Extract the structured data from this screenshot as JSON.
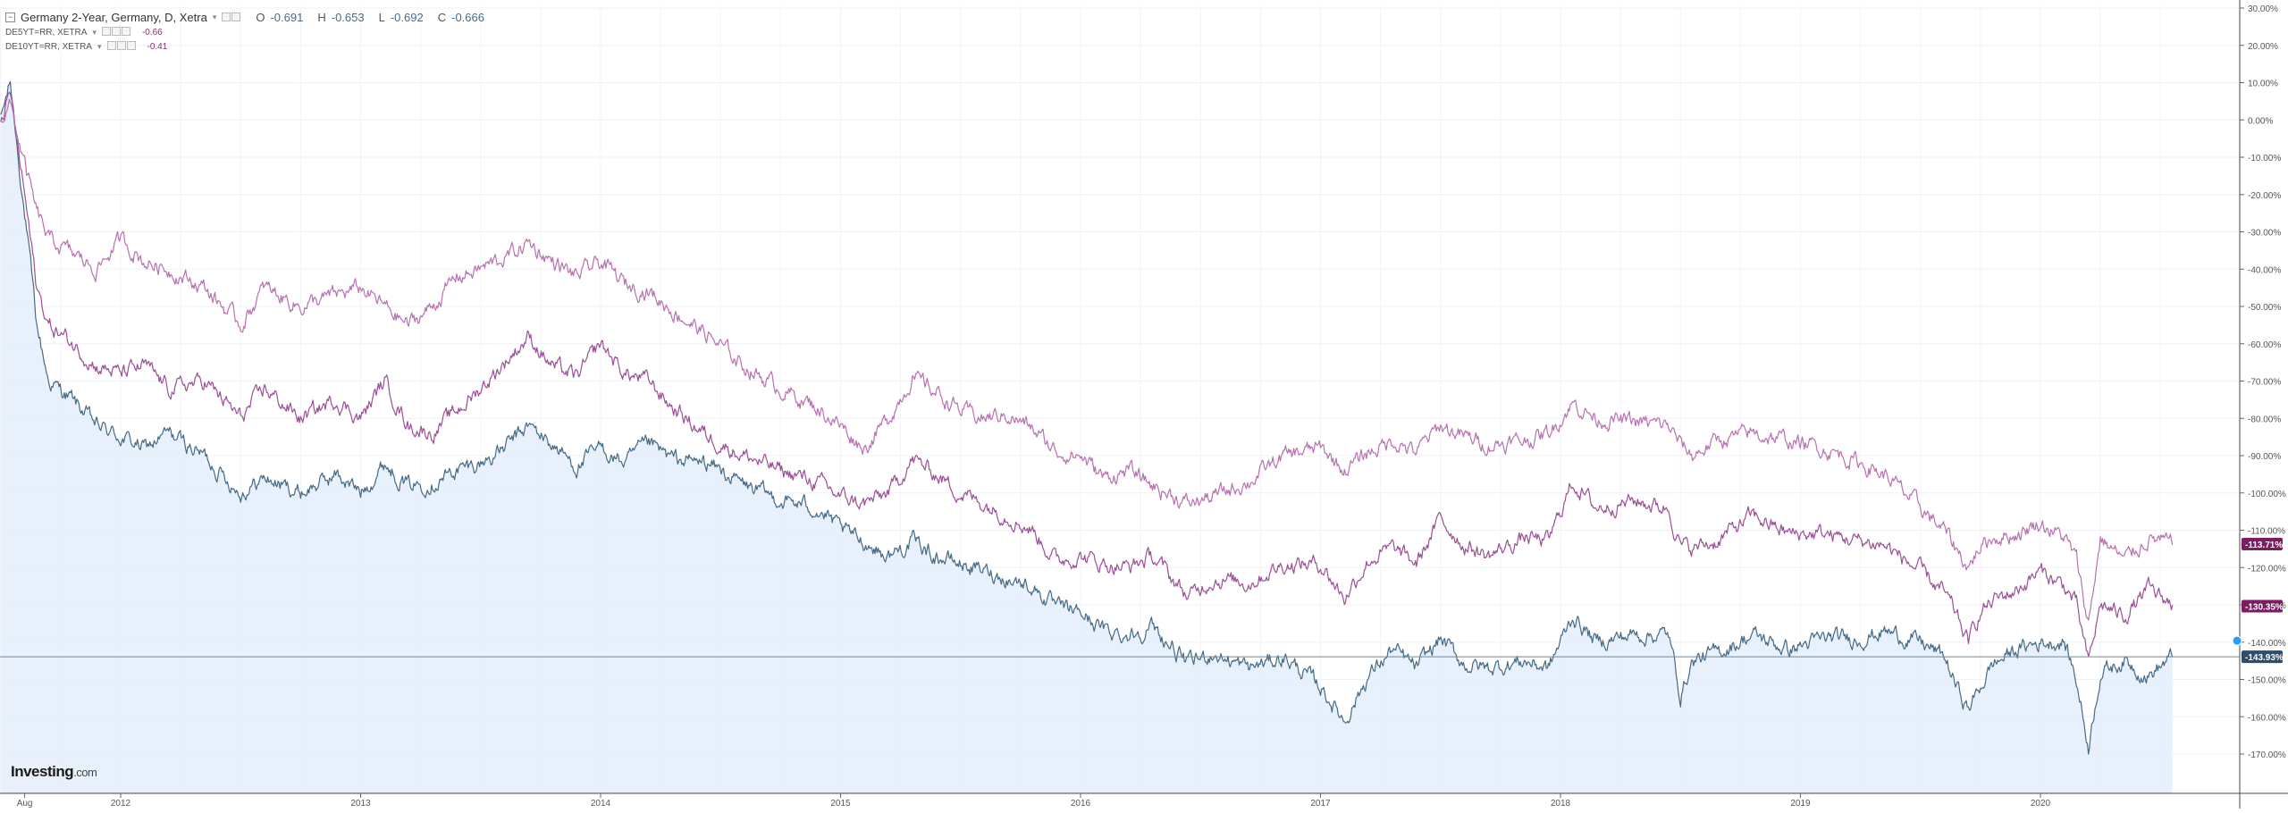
{
  "legend": {
    "main": {
      "title": "Germany 2-Year, Germany, D, Xetra",
      "o_label": "O",
      "o": "-0.691",
      "h_label": "H",
      "h": "-0.653",
      "l_label": "L",
      "l": "-0.692",
      "c_label": "C",
      "c": "-0.666"
    },
    "compare1": {
      "symbol": "DE5YT=RR, XETRA",
      "value": "-0.66"
    },
    "compare2": {
      "symbol": "DE10YT=RR, XETRA",
      "value": "-0.41"
    }
  },
  "logo": {
    "brand": "Investing",
    "suffix": ".com"
  },
  "colors": {
    "de2y": "#456a84",
    "de2y_fill": "#e4effa",
    "de5y": "#9b4f96",
    "de10y": "#b871b0",
    "badge_purple": "#7c1c62",
    "badge_blue": "#2d4d6a",
    "price_line": "#6e8799"
  },
  "chart_data": {
    "type": "line",
    "y_axis": {
      "min": -175,
      "max": 30,
      "unit": "%",
      "scale": "linear",
      "ticks": [
        30,
        20,
        10,
        0,
        -10,
        -20,
        -30,
        -40,
        -50,
        -60,
        -70,
        -80,
        -90,
        -100,
        -110,
        -120,
        -130,
        -140,
        -150,
        -160,
        -170
      ],
      "tick_labels": [
        "30.00%",
        "20.00%",
        "10.00%",
        "0.00%",
        "-10.00%",
        "-20.00%",
        "-30.00%",
        "-40.00%",
        "-50.00%",
        "-60.00%",
        "-70.00%",
        "-80.00%",
        "-90.00%",
        "-100.00%",
        "-110.00%",
        "-120.00%",
        "-130.00%",
        "-140.00%",
        "-150.00%",
        "-160.00%",
        "-170.00%"
      ]
    },
    "x_axis": {
      "min": 2011.5,
      "max": 2020.6,
      "tick_labels": [
        {
          "x": 2011.6,
          "label": "Aug"
        },
        {
          "x": 2012.0,
          "label": "2012"
        },
        {
          "x": 2013.0,
          "label": "2013"
        },
        {
          "x": 2014.0,
          "label": "2014"
        },
        {
          "x": 2015.0,
          "label": "2015"
        },
        {
          "x": 2016.0,
          "label": "2016"
        },
        {
          "x": 2017.0,
          "label": "2017"
        },
        {
          "x": 2018.0,
          "label": "2018"
        },
        {
          "x": 2019.0,
          "label": "2019"
        },
        {
          "x": 2020.0,
          "label": "2020"
        }
      ]
    },
    "grid": true,
    "series": [
      {
        "name": "Germany 2-Year",
        "style": "area",
        "last_label": "-143.93%",
        "last_value": -143.93,
        "points": [
          [
            2011.5,
            0
          ],
          [
            2011.54,
            10
          ],
          [
            2011.6,
            -25
          ],
          [
            2011.65,
            -55
          ],
          [
            2011.7,
            -70
          ],
          [
            2011.8,
            -75
          ],
          [
            2011.9,
            -82
          ],
          [
            2012.0,
            -85
          ],
          [
            2012.1,
            -88
          ],
          [
            2012.2,
            -84
          ],
          [
            2012.35,
            -90
          ],
          [
            2012.5,
            -100
          ],
          [
            2012.6,
            -96
          ],
          [
            2012.75,
            -100
          ],
          [
            2012.9,
            -95
          ],
          [
            2013.0,
            -100
          ],
          [
            2013.1,
            -92
          ],
          [
            2013.2,
            -98
          ],
          [
            2013.3,
            -97
          ],
          [
            2013.4,
            -94
          ],
          [
            2013.5,
            -92
          ],
          [
            2013.6,
            -88
          ],
          [
            2013.7,
            -82
          ],
          [
            2013.8,
            -87
          ],
          [
            2013.9,
            -93
          ],
          [
            2014.0,
            -88
          ],
          [
            2014.1,
            -92
          ],
          [
            2014.2,
            -87
          ],
          [
            2014.3,
            -91
          ],
          [
            2014.45,
            -92
          ],
          [
            2014.6,
            -98
          ],
          [
            2014.75,
            -102
          ],
          [
            2014.9,
            -104
          ],
          [
            2015.0,
            -110
          ],
          [
            2015.1,
            -113
          ],
          [
            2015.2,
            -117
          ],
          [
            2015.3,
            -113
          ],
          [
            2015.4,
            -117
          ],
          [
            2015.5,
            -119
          ],
          [
            2015.6,
            -121
          ],
          [
            2015.7,
            -123
          ],
          [
            2015.8,
            -125
          ],
          [
            2015.9,
            -131
          ],
          [
            2016.0,
            -132
          ],
          [
            2016.1,
            -137
          ],
          [
            2016.2,
            -138
          ],
          [
            2016.3,
            -136
          ],
          [
            2016.45,
            -146
          ],
          [
            2016.55,
            -143
          ],
          [
            2016.7,
            -147
          ],
          [
            2016.85,
            -144
          ],
          [
            2017.0,
            -152
          ],
          [
            2017.1,
            -161
          ],
          [
            2017.2,
            -149
          ],
          [
            2017.3,
            -142
          ],
          [
            2017.4,
            -147
          ],
          [
            2017.5,
            -139
          ],
          [
            2017.6,
            -146
          ],
          [
            2017.7,
            -147
          ],
          [
            2017.85,
            -145
          ],
          [
            2017.95,
            -147
          ],
          [
            2018.05,
            -133
          ],
          [
            2018.15,
            -140
          ],
          [
            2018.3,
            -138
          ],
          [
            2018.45,
            -138
          ],
          [
            2018.5,
            -154
          ],
          [
            2018.55,
            -145
          ],
          [
            2018.65,
            -143
          ],
          [
            2018.8,
            -138
          ],
          [
            2018.95,
            -142
          ],
          [
            2019.1,
            -139
          ],
          [
            2019.25,
            -139
          ],
          [
            2019.35,
            -137
          ],
          [
            2019.5,
            -140
          ],
          [
            2019.6,
            -144
          ],
          [
            2019.65,
            -152
          ],
          [
            2019.7,
            -158
          ],
          [
            2019.75,
            -152
          ],
          [
            2019.8,
            -146
          ],
          [
            2019.9,
            -142
          ],
          [
            2020.0,
            -140
          ],
          [
            2020.1,
            -140
          ],
          [
            2020.15,
            -150
          ],
          [
            2020.2,
            -168
          ],
          [
            2020.25,
            -148
          ],
          [
            2020.35,
            -145
          ],
          [
            2020.45,
            -149
          ],
          [
            2020.55,
            -144
          ]
        ]
      },
      {
        "name": "DE5YT=RR, XETRA",
        "style": "line",
        "last_label": "-130.35%",
        "last_value": -130.35,
        "points": [
          [
            2011.5,
            0
          ],
          [
            2011.54,
            7
          ],
          [
            2011.6,
            -20
          ],
          [
            2011.65,
            -45
          ],
          [
            2011.7,
            -55
          ],
          [
            2011.8,
            -60
          ],
          [
            2011.9,
            -66
          ],
          [
            2012.0,
            -68
          ],
          [
            2012.1,
            -66
          ],
          [
            2012.2,
            -72
          ],
          [
            2012.35,
            -70
          ],
          [
            2012.5,
            -80
          ],
          [
            2012.6,
            -72
          ],
          [
            2012.75,
            -80
          ],
          [
            2012.9,
            -75
          ],
          [
            2013.0,
            -80
          ],
          [
            2013.1,
            -70
          ],
          [
            2013.2,
            -82
          ],
          [
            2013.3,
            -84
          ],
          [
            2013.4,
            -78
          ],
          [
            2013.5,
            -72
          ],
          [
            2013.6,
            -65
          ],
          [
            2013.7,
            -58
          ],
          [
            2013.8,
            -66
          ],
          [
            2013.9,
            -69
          ],
          [
            2014.0,
            -60
          ],
          [
            2014.1,
            -68
          ],
          [
            2014.2,
            -70
          ],
          [
            2014.3,
            -77
          ],
          [
            2014.45,
            -85
          ],
          [
            2014.6,
            -90
          ],
          [
            2014.75,
            -94
          ],
          [
            2014.9,
            -97
          ],
          [
            2015.0,
            -101
          ],
          [
            2015.1,
            -103
          ],
          [
            2015.2,
            -100
          ],
          [
            2015.3,
            -91
          ],
          [
            2015.4,
            -95
          ],
          [
            2015.5,
            -100
          ],
          [
            2015.6,
            -103
          ],
          [
            2015.7,
            -106
          ],
          [
            2015.8,
            -110
          ],
          [
            2015.9,
            -118
          ],
          [
            2016.0,
            -117
          ],
          [
            2016.1,
            -119
          ],
          [
            2016.2,
            -120
          ],
          [
            2016.3,
            -117
          ],
          [
            2016.45,
            -128
          ],
          [
            2016.55,
            -123
          ],
          [
            2016.7,
            -124
          ],
          [
            2016.85,
            -119
          ],
          [
            2017.0,
            -119
          ],
          [
            2017.1,
            -128
          ],
          [
            2017.2,
            -118
          ],
          [
            2017.3,
            -115
          ],
          [
            2017.4,
            -119
          ],
          [
            2017.5,
            -107
          ],
          [
            2017.6,
            -114
          ],
          [
            2017.7,
            -117
          ],
          [
            2017.85,
            -112
          ],
          [
            2017.95,
            -113
          ],
          [
            2018.05,
            -97
          ],
          [
            2018.15,
            -104
          ],
          [
            2018.3,
            -102
          ],
          [
            2018.45,
            -104
          ],
          [
            2018.5,
            -114
          ],
          [
            2018.55,
            -115
          ],
          [
            2018.65,
            -113
          ],
          [
            2018.8,
            -106
          ],
          [
            2018.95,
            -111
          ],
          [
            2019.1,
            -111
          ],
          [
            2019.25,
            -113
          ],
          [
            2019.35,
            -114
          ],
          [
            2019.5,
            -121
          ],
          [
            2019.6,
            -127
          ],
          [
            2019.65,
            -133
          ],
          [
            2019.7,
            -140
          ],
          [
            2019.75,
            -132
          ],
          [
            2019.8,
            -129
          ],
          [
            2019.9,
            -126
          ],
          [
            2020.0,
            -121
          ],
          [
            2020.1,
            -125
          ],
          [
            2020.15,
            -130
          ],
          [
            2020.2,
            -146
          ],
          [
            2020.25,
            -130
          ],
          [
            2020.35,
            -133
          ],
          [
            2020.45,
            -126
          ],
          [
            2020.55,
            -130
          ]
        ]
      },
      {
        "name": "DE10YT=RR, XETRA",
        "style": "line",
        "last_label": "-113.71%",
        "last_value": -113.71,
        "points": [
          [
            2011.5,
            0
          ],
          [
            2011.54,
            4
          ],
          [
            2011.6,
            -12
          ],
          [
            2011.65,
            -25
          ],
          [
            2011.7,
            -32
          ],
          [
            2011.8,
            -36
          ],
          [
            2011.9,
            -40
          ],
          [
            2012.0,
            -32
          ],
          [
            2012.1,
            -38
          ],
          [
            2012.2,
            -40
          ],
          [
            2012.35,
            -45
          ],
          [
            2012.5,
            -55
          ],
          [
            2012.6,
            -45
          ],
          [
            2012.75,
            -50
          ],
          [
            2012.9,
            -47
          ],
          [
            2013.0,
            -45
          ],
          [
            2013.1,
            -50
          ],
          [
            2013.2,
            -55
          ],
          [
            2013.3,
            -50
          ],
          [
            2013.4,
            -42
          ],
          [
            2013.5,
            -40
          ],
          [
            2013.6,
            -37
          ],
          [
            2013.7,
            -33
          ],
          [
            2013.8,
            -38
          ],
          [
            2013.9,
            -42
          ],
          [
            2014.0,
            -38
          ],
          [
            2014.1,
            -44
          ],
          [
            2014.2,
            -46
          ],
          [
            2014.3,
            -51
          ],
          [
            2014.45,
            -58
          ],
          [
            2014.6,
            -66
          ],
          [
            2014.75,
            -72
          ],
          [
            2014.9,
            -77
          ],
          [
            2015.0,
            -82
          ],
          [
            2015.1,
            -88
          ],
          [
            2015.2,
            -80
          ],
          [
            2015.3,
            -69
          ],
          [
            2015.4,
            -73
          ],
          [
            2015.5,
            -78
          ],
          [
            2015.6,
            -80
          ],
          [
            2015.7,
            -79
          ],
          [
            2015.8,
            -83
          ],
          [
            2015.9,
            -89
          ],
          [
            2016.0,
            -90
          ],
          [
            2016.1,
            -96
          ],
          [
            2016.2,
            -94
          ],
          [
            2016.3,
            -98
          ],
          [
            2016.45,
            -103
          ],
          [
            2016.55,
            -101
          ],
          [
            2016.7,
            -97
          ],
          [
            2016.85,
            -90
          ],
          [
            2017.0,
            -88
          ],
          [
            2017.1,
            -94
          ],
          [
            2017.2,
            -89
          ],
          [
            2017.3,
            -86
          ],
          [
            2017.4,
            -89
          ],
          [
            2017.5,
            -82
          ],
          [
            2017.6,
            -85
          ],
          [
            2017.7,
            -87
          ],
          [
            2017.85,
            -86
          ],
          [
            2017.95,
            -84
          ],
          [
            2018.05,
            -76
          ],
          [
            2018.15,
            -80
          ],
          [
            2018.3,
            -81
          ],
          [
            2018.45,
            -82
          ],
          [
            2018.5,
            -87
          ],
          [
            2018.55,
            -90
          ],
          [
            2018.65,
            -86
          ],
          [
            2018.8,
            -84
          ],
          [
            2018.95,
            -86
          ],
          [
            2019.1,
            -88
          ],
          [
            2019.25,
            -92
          ],
          [
            2019.35,
            -95
          ],
          [
            2019.5,
            -104
          ],
          [
            2019.6,
            -110
          ],
          [
            2019.65,
            -115
          ],
          [
            2019.7,
            -120
          ],
          [
            2019.75,
            -114
          ],
          [
            2019.8,
            -112
          ],
          [
            2019.9,
            -111
          ],
          [
            2020.0,
            -108
          ],
          [
            2020.1,
            -112
          ],
          [
            2020.15,
            -118
          ],
          [
            2020.2,
            -135
          ],
          [
            2020.25,
            -112
          ],
          [
            2020.35,
            -118
          ],
          [
            2020.45,
            -112
          ],
          [
            2020.55,
            -114
          ]
        ]
      }
    ],
    "price_line": -143.93
  }
}
